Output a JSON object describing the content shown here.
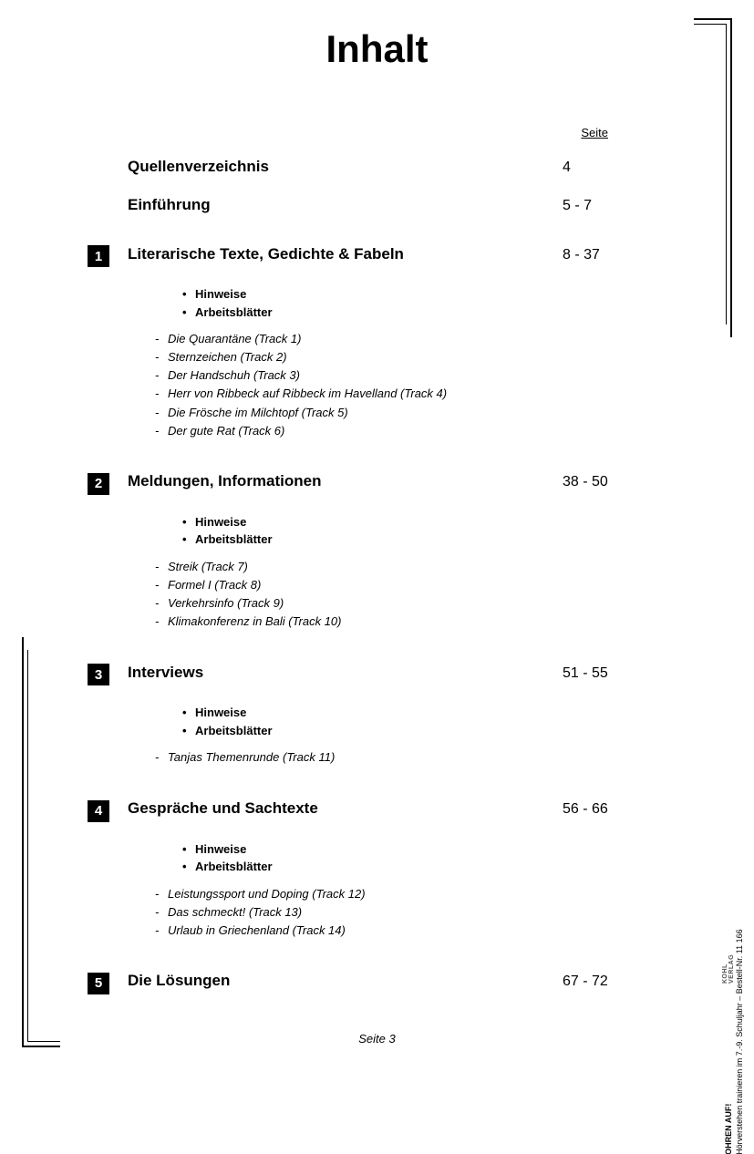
{
  "title": "Inhalt",
  "page_column_header": "Seite",
  "simple_entries": [
    {
      "title": "Quellenverzeichnis",
      "pages": "4"
    },
    {
      "title": "Einführung",
      "pages": "5 -   7"
    }
  ],
  "sections": [
    {
      "num": "1",
      "title": "Literarische Texte, Gedichte & Fabeln",
      "pages": "8 - 37",
      "bullets": [
        "Hinweise",
        "Arbeitsblätter"
      ],
      "dashes": [
        "Die Quarantäne (Track 1)",
        "Sternzeichen (Track 2)",
        "Der Handschuh (Track 3)",
        "Herr von Ribbeck auf Ribbeck im Havelland (Track 4)",
        "Die Frösche im Milchtopf (Track 5)",
        "Der gute Rat (Track 6)"
      ]
    },
    {
      "num": "2",
      "title": "Meldungen, Informationen",
      "pages": "38 - 50",
      "bullets": [
        "Hinweise",
        "Arbeitsblätter"
      ],
      "dashes": [
        "Streik (Track 7)",
        "Formel I (Track 8)",
        "Verkehrsinfo (Track 9)",
        "Klimakonferenz in Bali (Track 10)"
      ]
    },
    {
      "num": "3",
      "title": "Interviews",
      "pages": "51 - 55",
      "bullets": [
        "Hinweise",
        "Arbeitsblätter"
      ],
      "dashes": [
        "Tanjas Themenrunde (Track 11)"
      ]
    },
    {
      "num": "4",
      "title": "Gespräche und Sachtexte",
      "pages": "56 - 66",
      "bullets": [
        "Hinweise",
        "Arbeitsblätter"
      ],
      "dashes": [
        "Leistungssport und Doping (Track 12)",
        "Das schmeckt! (Track 13)",
        "Urlaub in Griechenland (Track 14)"
      ]
    },
    {
      "num": "5",
      "title": "Die Lösungen",
      "pages": "67 - 72",
      "bullets": [],
      "dashes": []
    }
  ],
  "footer": "Seite 3",
  "side": {
    "line1": "OHREN AUF!",
    "line2": "Hörverstehen trainieren im 7.-9. Schuljahr    –    Bestell-Nr. 11 166",
    "logo_text": "KOHL VERLAG"
  },
  "colors": {
    "text": "#000000",
    "bg": "#ffffff",
    "box_bg": "#000000",
    "box_fg": "#ffffff"
  }
}
